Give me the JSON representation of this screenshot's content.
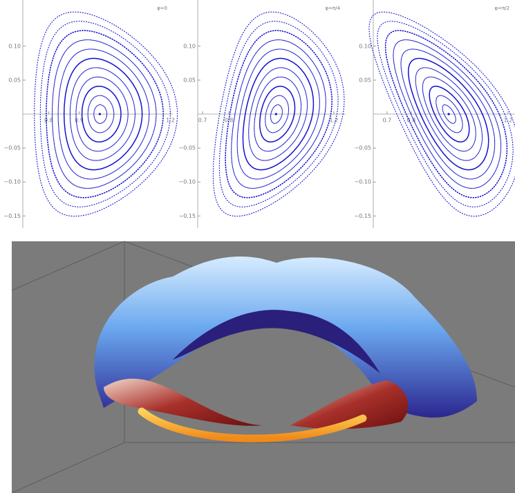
{
  "panels": [
    {
      "label": "φ=0",
      "xlim": [
        0.64,
        1.208
      ],
      "ylim": [
        -0.168,
        0.168
      ],
      "xticks": [
        0.8,
        0.9,
        1.2
      ],
      "yticks": [
        {
          "value": 0.1,
          "label": "0.10"
        },
        {
          "value": 0.05,
          "label": "0.05"
        },
        {
          "value": -0.05,
          "label": "−0.05"
        },
        {
          "value": -0.1,
          "label": "−0.10"
        },
        {
          "value": -0.15,
          "label": "−0.15"
        }
      ]
    },
    {
      "label": "φ=π/4",
      "xlim": [
        0.608,
        1.245
      ],
      "ylim": [
        -0.168,
        0.168
      ],
      "xticks": [
        0.7,
        0.8,
        1.2
      ],
      "yticks": [
        {
          "value": 0.1,
          "label": "0.10"
        },
        {
          "value": 0.05,
          "label": "0.05"
        },
        {
          "value": -0.05,
          "label": "−0.05"
        },
        {
          "value": -0.1,
          "label": "−0.10"
        },
        {
          "value": -0.15,
          "label": "−0.15"
        }
      ]
    },
    {
      "label": "φ=π/2",
      "xlim": [
        0.563,
        1.229
      ],
      "ylim": [
        -0.168,
        0.168
      ],
      "xticks": [
        0.7,
        0.8,
        1.2
      ],
      "yticks": [
        {
          "value": 0.1,
          "label": "0.10"
        },
        {
          "value": 0.05,
          "label": "0.05"
        },
        {
          "value": -0.05,
          "label": "−0.05"
        },
        {
          "value": -0.1,
          "label": "−0.10"
        },
        {
          "value": -0.15,
          "label": "−0.15"
        }
      ]
    }
  ]
}
